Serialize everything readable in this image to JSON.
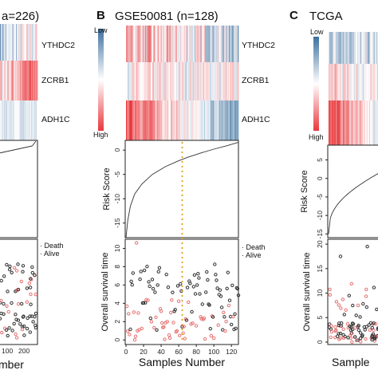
{
  "colors": {
    "high": "#e8383d",
    "mid": "#ffffff",
    "low": "#3d6f9e",
    "death": "#e57373",
    "alive": "#333333",
    "cutoff": "#e0a020"
  },
  "chart_data": [
    {
      "type": "heatmap+line+scatter",
      "panel_label": "",
      "title": "a=226)",
      "genes": [
        "YTHDC2",
        "ZCRB1",
        "ADH1C"
      ],
      "legend": {
        "death": "Death",
        "alive": "Alive"
      },
      "x_ticks": [
        "100",
        "200"
      ],
      "x_label": "mber",
      "n": 226
    },
    {
      "type": "heatmap+line+scatter",
      "panel_label": "B",
      "title": "GSE50081 (n=128)",
      "genes": [
        "YTHDC2",
        "ZCRB1",
        "ADH1C"
      ],
      "heat_legend": {
        "top": "Low",
        "bottom": "High"
      },
      "risk": {
        "ylabel": "Risk Score",
        "yticks": [
          0,
          -5,
          -10,
          -15
        ],
        "ylim": [
          -18,
          2
        ],
        "curve": [
          [
            0,
            -18
          ],
          [
            2,
            -14.5
          ],
          [
            5,
            -11.5
          ],
          [
            10,
            -9
          ],
          [
            18,
            -7
          ],
          [
            30,
            -5
          ],
          [
            45,
            -3.4
          ],
          [
            60,
            -2.2
          ],
          [
            70,
            -1.5
          ],
          [
            85,
            -0.6
          ],
          [
            100,
            0.2
          ],
          [
            115,
            0.9
          ],
          [
            128,
            1.6
          ]
        ]
      },
      "survival": {
        "ylabel": "Overall survival time",
        "yticks": [
          0,
          2,
          4,
          6,
          8,
          10
        ],
        "ylim": [
          -0.5,
          11
        ],
        "legend": {
          "death": "Death",
          "alive": "Alive"
        }
      },
      "cutoff_index": 64,
      "x_ticks": [
        0,
        20,
        40,
        60,
        80,
        100,
        120
      ],
      "xlim": [
        0,
        128
      ],
      "x_label": "Samples Number",
      "n": 128
    },
    {
      "type": "heatmap+line+scatter",
      "panel_label": "C",
      "title": "TCGA",
      "heat_legend": {
        "top": "Low",
        "bottom": "High"
      },
      "risk": {
        "ylabel": "Risk Score",
        "yticks": [
          5,
          0,
          -5,
          -10,
          -15
        ],
        "ylim": [
          -16,
          9
        ]
      },
      "survival": {
        "ylabel": "Overall survival time",
        "yticks": [
          0,
          5,
          10,
          15,
          20
        ],
        "ylim": [
          -0.5,
          21
        ]
      },
      "x_label": "Sample"
    }
  ]
}
